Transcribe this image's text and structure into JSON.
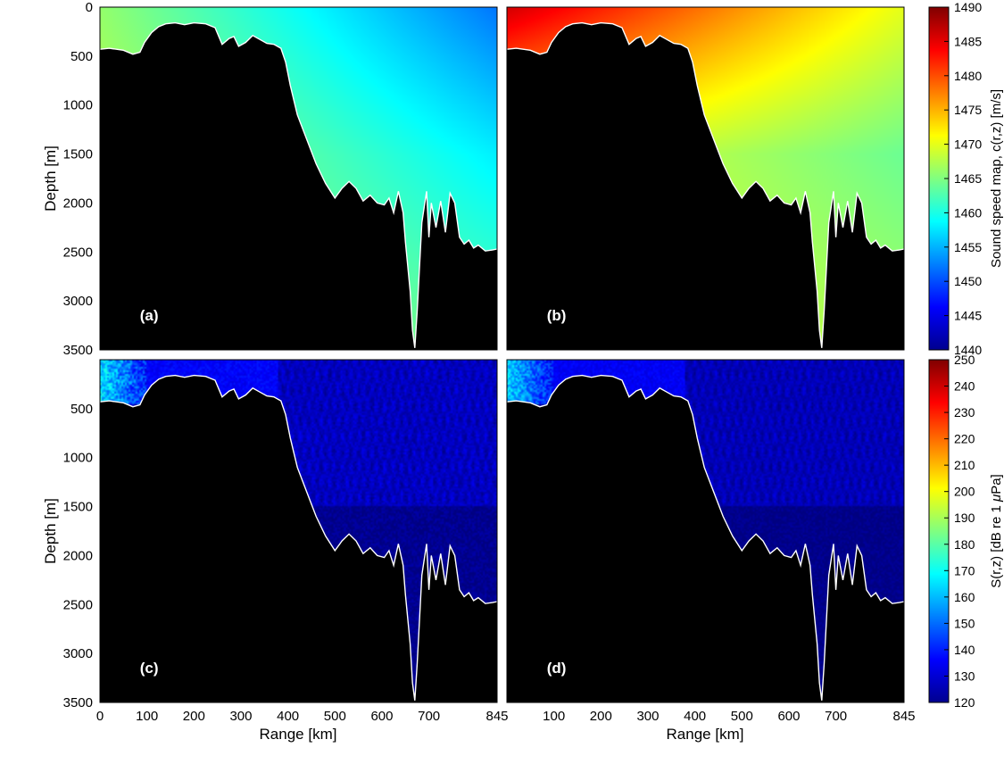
{
  "chart_data": [
    {
      "id": "a",
      "type": "heatmap",
      "panel_label": "(a)",
      "quantity": "sound speed c(r,z)",
      "xlabel": "",
      "ylabel": "Depth [m]",
      "xlim": [
        0,
        845
      ],
      "ylim": [
        0,
        3500
      ],
      "y_inverted": true,
      "x_ticks": [],
      "y_ticks": [
        "0",
        "500",
        "1000",
        "1500",
        "2000",
        "2500",
        "3000",
        "3500"
      ],
      "field": {
        "value_range": [
          1440,
          1490
        ],
        "surface_left": 1466,
        "surface_right": 1452,
        "deep_left": 1468,
        "deep_right": 1458,
        "bottom_value": 1469,
        "min_value": 1440,
        "max_value": 1490
      }
    },
    {
      "id": "b",
      "type": "heatmap",
      "panel_label": "(b)",
      "quantity": "sound speed c(r,z)",
      "xlabel": "",
      "ylabel": "",
      "xlim": [
        0,
        845
      ],
      "ylim": [
        0,
        3500
      ],
      "y_inverted": true,
      "x_ticks": [],
      "y_ticks": [],
      "field": {
        "value_range": [
          1440,
          1490
        ],
        "surface_left": 1486,
        "surface_right": 1470,
        "deep_left": 1471,
        "deep_right": 1464,
        "bottom_value": 1470,
        "min_value": 1440,
        "max_value": 1490
      }
    },
    {
      "id": "c",
      "type": "heatmap",
      "panel_label": "(c)",
      "quantity": "sound pressure level S(r,z)",
      "xlabel": "Range [km]",
      "ylabel": "Depth [m]",
      "xlim": [
        0,
        845
      ],
      "ylim": [
        0,
        3500
      ],
      "y_inverted": true,
      "x_ticks": [
        "0",
        "100",
        "200",
        "300",
        "400",
        "500",
        "600",
        "700",
        "845"
      ],
      "y_ticks": [
        "500",
        "1000",
        "1500",
        "2000",
        "2500",
        "3000",
        "3500"
      ],
      "field": {
        "value_range": [
          120,
          250
        ],
        "source_level": 165,
        "shelf_level": 128,
        "deep_level": 122,
        "speckle": 12
      }
    },
    {
      "id": "d",
      "type": "heatmap",
      "panel_label": "(d)",
      "quantity": "sound pressure level S(r,z)",
      "xlabel": "Range [km]",
      "ylabel": "",
      "xlim": [
        0,
        845
      ],
      "ylim": [
        0,
        3500
      ],
      "y_inverted": true,
      "x_ticks": [
        "100",
        "200",
        "300",
        "400",
        "500",
        "600",
        "700",
        "845"
      ],
      "y_ticks": [],
      "field": {
        "value_range": [
          120,
          250
        ],
        "source_level": 163,
        "shelf_level": 127,
        "deep_level": 121,
        "speckle": 10
      }
    }
  ],
  "bathymetry": {
    "units": {
      "range": "km",
      "depth": "m"
    },
    "range_km": [
      0,
      20,
      50,
      70,
      85,
      95,
      110,
      125,
      140,
      160,
      180,
      200,
      225,
      245,
      260,
      275,
      285,
      295,
      310,
      325,
      340,
      355,
      370,
      385,
      395,
      405,
      420,
      440,
      460,
      480,
      500,
      515,
      530,
      545,
      560,
      575,
      590,
      605,
      615,
      625,
      635,
      645,
      650,
      660,
      665,
      670,
      675,
      685,
      695,
      700,
      705,
      715,
      725,
      735,
      745,
      755,
      765,
      775,
      785,
      795,
      805,
      820,
      835,
      845
    ],
    "depth_m": [
      430,
      420,
      440,
      480,
      460,
      360,
      260,
      200,
      170,
      160,
      180,
      160,
      170,
      210,
      380,
      320,
      300,
      400,
      360,
      290,
      330,
      370,
      380,
      420,
      560,
      800,
      1100,
      1350,
      1600,
      1800,
      1950,
      1850,
      1780,
      1850,
      1980,
      1920,
      2000,
      2020,
      1950,
      2100,
      1880,
      2100,
      2400,
      2900,
      3300,
      3480,
      3100,
      2200,
      1880,
      2350,
      2000,
      2250,
      1980,
      2300,
      1900,
      2000,
      2350,
      2420,
      2380,
      2460,
      2430,
      2490,
      2480,
      2470
    ]
  },
  "colorbars": [
    {
      "label": "Sound speed map, c(r,z) [m/s]",
      "min": 1440,
      "max": 1490,
      "ticks": [
        "1440",
        "1445",
        "1450",
        "1455",
        "1460",
        "1465",
        "1470",
        "1475",
        "1480",
        "1485",
        "1490"
      ]
    },
    {
      "label_prefix": "S(r,z) [dB re 1 ",
      "label_mu": "μ",
      "label_suffix": "Pa]",
      "min": 120,
      "max": 250,
      "ticks": [
        "120",
        "130",
        "140",
        "150",
        "160",
        "170",
        "180",
        "190",
        "200",
        "210",
        "220",
        "230",
        "240",
        "250"
      ]
    }
  ]
}
